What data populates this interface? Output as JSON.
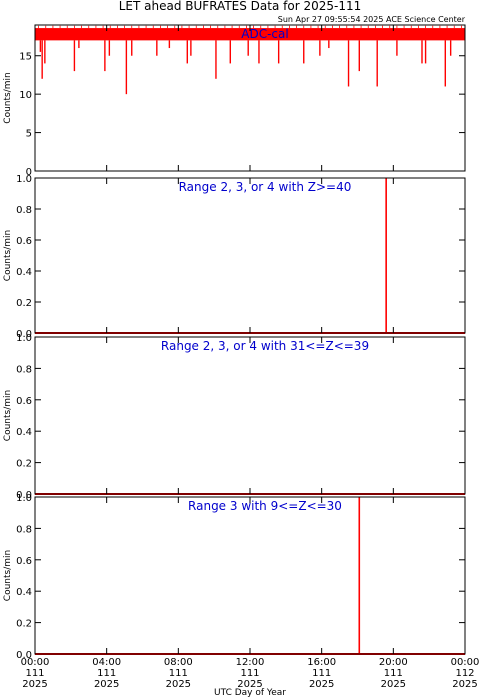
{
  "page": {
    "title": "LET ahead BUFRATES Data for 2025-111",
    "timestamp": "Sun Apr 27 09:55:54 2025 ACE Science Center",
    "xlabel": "UTC Day of Year",
    "ylabel": "Counts/min"
  },
  "colors": {
    "data": "#ff0000",
    "title_text": "#0000cc",
    "axes": "#000000"
  },
  "chart_data": [
    {
      "type": "line",
      "title": "ADC-cal",
      "xlabel": "UTC Day of Year",
      "ylabel": "Counts/min",
      "xlim": [
        0,
        24
      ],
      "ylim": [
        0,
        19
      ],
      "yticks": [
        0,
        5,
        10,
        15
      ],
      "ytick_labels": [
        "0",
        "5",
        "10",
        "15"
      ],
      "baseline": 18,
      "band_low": 17,
      "drops": [
        {
          "x": 0.3,
          "y": 15.5
        },
        {
          "x": 0.4,
          "y": 12
        },
        {
          "x": 0.55,
          "y": 14
        },
        {
          "x": 2.2,
          "y": 13
        },
        {
          "x": 2.45,
          "y": 16
        },
        {
          "x": 3.9,
          "y": 13
        },
        {
          "x": 4.15,
          "y": 15
        },
        {
          "x": 5.1,
          "y": 10
        },
        {
          "x": 5.4,
          "y": 15
        },
        {
          "x": 6.8,
          "y": 15
        },
        {
          "x": 7.5,
          "y": 16
        },
        {
          "x": 8.5,
          "y": 14
        },
        {
          "x": 8.7,
          "y": 15
        },
        {
          "x": 10.1,
          "y": 12
        },
        {
          "x": 10.9,
          "y": 14
        },
        {
          "x": 11.9,
          "y": 15
        },
        {
          "x": 12.5,
          "y": 14
        },
        {
          "x": 13.6,
          "y": 14
        },
        {
          "x": 15.0,
          "y": 14
        },
        {
          "x": 15.9,
          "y": 15
        },
        {
          "x": 16.4,
          "y": 16
        },
        {
          "x": 17.5,
          "y": 11
        },
        {
          "x": 18.1,
          "y": 13
        },
        {
          "x": 19.1,
          "y": 11
        },
        {
          "x": 20.2,
          "y": 15
        },
        {
          "x": 21.6,
          "y": 14
        },
        {
          "x": 21.8,
          "y": 14
        },
        {
          "x": 22.9,
          "y": 11
        },
        {
          "x": 23.2,
          "y": 15
        }
      ]
    },
    {
      "type": "line",
      "title": "Range 2, 3, or 4 with Z>=40",
      "xlabel": "UTC Day of Year",
      "ylabel": "Counts/min",
      "xlim": [
        0,
        24
      ],
      "ylim": [
        0,
        1
      ],
      "yticks": [
        0,
        0.2,
        0.4,
        0.6,
        0.8,
        1.0
      ],
      "ytick_labels": [
        "0.0",
        "0.2",
        "0.4",
        "0.6",
        "0.8",
        "1.0"
      ],
      "baseline": 0,
      "spikes": [
        {
          "x": 19.6,
          "y": 1.0
        }
      ]
    },
    {
      "type": "line",
      "title": "Range 2, 3, or 4 with 31<=Z<=39",
      "xlabel": "UTC Day of Year",
      "ylabel": "Counts/min",
      "xlim": [
        0,
        24
      ],
      "ylim": [
        0,
        1
      ],
      "yticks": [
        0,
        0.2,
        0.4,
        0.6,
        0.8,
        1.0
      ],
      "ytick_labels": [
        "0.0",
        "0.2",
        "0.4",
        "0.6",
        "0.8",
        "1.0"
      ],
      "baseline": 0,
      "spikes": []
    },
    {
      "type": "line",
      "title": "Range 3 with 9<=Z<=30",
      "xlabel": "UTC Day of Year",
      "ylabel": "Counts/min",
      "xlim": [
        0,
        24
      ],
      "ylim": [
        0,
        1
      ],
      "yticks": [
        0,
        0.2,
        0.4,
        0.6,
        0.8,
        1.0
      ],
      "ytick_labels": [
        "0.0",
        "0.2",
        "0.4",
        "0.6",
        "0.8",
        "1.0"
      ],
      "baseline": 0,
      "spikes": [
        {
          "x": 18.1,
          "y": 1.0
        }
      ]
    }
  ],
  "x_ticks": [
    {
      "value": 0,
      "time": "00:00",
      "doy": "111",
      "year": "2025"
    },
    {
      "value": 4,
      "time": "04:00",
      "doy": "111",
      "year": "2025"
    },
    {
      "value": 8,
      "time": "08:00",
      "doy": "111",
      "year": "2025"
    },
    {
      "value": 12,
      "time": "12:00",
      "doy": "111",
      "year": "2025"
    },
    {
      "value": 16,
      "time": "16:00",
      "doy": "111",
      "year": "2025"
    },
    {
      "value": 20,
      "time": "20:00",
      "doy": "111",
      "year": "2025"
    },
    {
      "value": 24,
      "time": "00:00",
      "doy": "112",
      "year": "2025"
    }
  ]
}
